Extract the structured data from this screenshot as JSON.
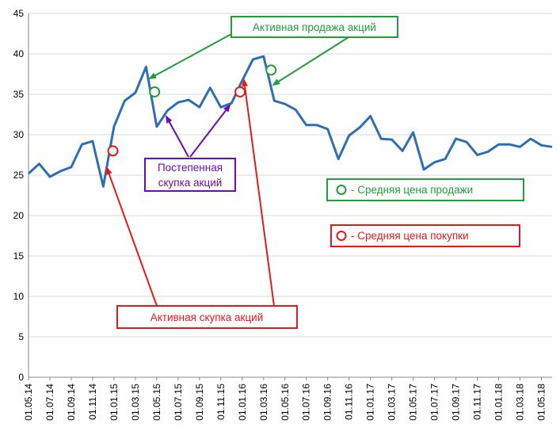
{
  "chart_data": {
    "type": "line",
    "ylim": [
      0,
      45
    ],
    "yticks": [
      0,
      5,
      10,
      15,
      20,
      25,
      30,
      35,
      40,
      45
    ],
    "grid": true,
    "x_tick_labels": [
      "01.05.14",
      "01.07.14",
      "01.09.14",
      "01.11.14",
      "01.01.15",
      "01.03.15",
      "01.05.15",
      "01.07.15",
      "01.09.15",
      "01.11.15",
      "01.01.16",
      "01.03.16",
      "01.05.16",
      "01.07.16",
      "01.09.16",
      "01.11.16",
      "01.01.17",
      "01.03.17",
      "01.05.17",
      "01.07.17",
      "01.09.17",
      "01.11.17",
      "01.01.18",
      "01.03.18",
      "01.05.18"
    ],
    "series": [
      {
        "values": [
          25.2,
          26.4,
          24.8,
          25.5,
          26.0,
          28.8,
          29.2,
          23.6,
          31.0,
          34.2,
          35.2,
          38.4,
          31.0,
          33.0,
          34.0,
          34.3,
          33.4,
          35.8,
          33.4,
          33.9,
          36.7,
          39.3,
          39.7,
          34.2,
          33.8,
          33.1,
          31.2,
          31.2,
          30.7,
          27.0,
          29.9,
          30.9,
          32.3,
          29.5,
          29.4,
          28.0,
          30.3,
          25.7,
          26.6,
          27.0,
          29.5,
          29.1,
          27.5,
          27.9,
          28.8,
          28.8,
          28.5,
          29.5,
          28.7,
          28.5
        ],
        "color": "#2e6eb5"
      }
    ],
    "markers": [
      {
        "type": "buy",
        "index": 7.9,
        "value": 28.0,
        "color": "#e31a1c"
      },
      {
        "type": "sell",
        "index": 11.8,
        "value": 35.3,
        "color": "#1f9e3a"
      },
      {
        "type": "buy",
        "index": 19.8,
        "value": 35.3,
        "color": "#e31a1c"
      },
      {
        "type": "sell",
        "index": 22.7,
        "value": 38.0,
        "color": "#1f9e3a"
      }
    ],
    "annotations": {
      "active_sell": {
        "text": "Активная продажа акций",
        "color": "#1f9e3a"
      },
      "gradual_buy": {
        "lines": [
          "Постепенная",
          "скупка акций"
        ],
        "color": "#6a0dad"
      },
      "active_buy": {
        "text": "Активная скупка акций",
        "color": "#e31a1c"
      }
    },
    "legend": [
      {
        "label": "- Средняя цена продажи",
        "color": "#1f9e3a"
      },
      {
        "label": "- Средняя цена покупки",
        "color": "#e31a1c"
      }
    ]
  }
}
